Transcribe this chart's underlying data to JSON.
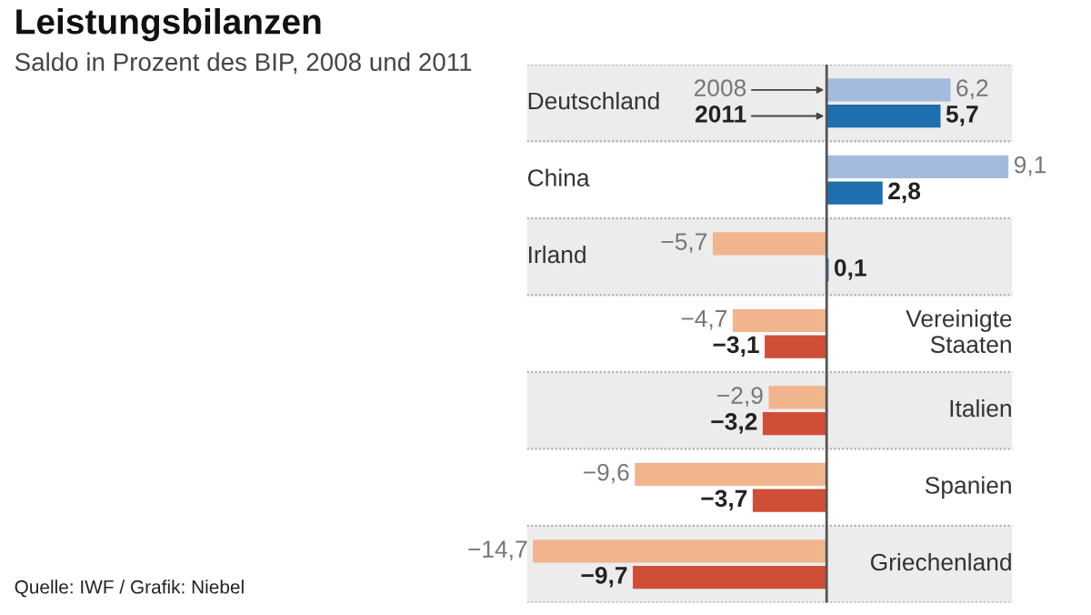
{
  "chart_data": {
    "type": "bar",
    "orientation": "horizontal",
    "title": "Leistungsbilanzen",
    "subtitle": "Saldo in Prozent des BIP, 2008 und 2011",
    "categories": [
      "Deutschland",
      "China",
      "Irland",
      "Vereinigte\nStaaten",
      "Italien",
      "Spanien",
      "Griechenland"
    ],
    "xlim": [
      -15.0,
      9.3
    ],
    "series": [
      {
        "name": "2008",
        "values": [
          6.2,
          9.1,
          -5.7,
          -4.7,
          -2.9,
          -9.6,
          -14.7
        ],
        "value_labels": [
          "6,2",
          "9,1",
          "−5,7",
          "−4,7",
          "−2,9",
          "−9,6",
          "−14,7"
        ],
        "colors": [
          "#a3bbdc",
          "#a3bbdc",
          "#f0b58c",
          "#f0b58c",
          "#f0b58c",
          "#f0b58c",
          "#f0b58c"
        ]
      },
      {
        "name": "2011",
        "values": [
          5.7,
          2.8,
          0.1,
          -3.1,
          -3.2,
          -3.7,
          -9.7
        ],
        "value_labels": [
          "5,7",
          "2,8",
          "0,1",
          "−3,1",
          "−3,2",
          "−3,7",
          "−9,7"
        ],
        "colors": [
          "#1f6eae",
          "#1f6eae",
          "#1f6eae",
          "#cf4f36",
          "#cf4f36",
          "#cf4f36",
          "#cf4f36"
        ]
      }
    ],
    "annotations": [
      "Quelle: IWF / Grafik: Niebel"
    ]
  }
}
